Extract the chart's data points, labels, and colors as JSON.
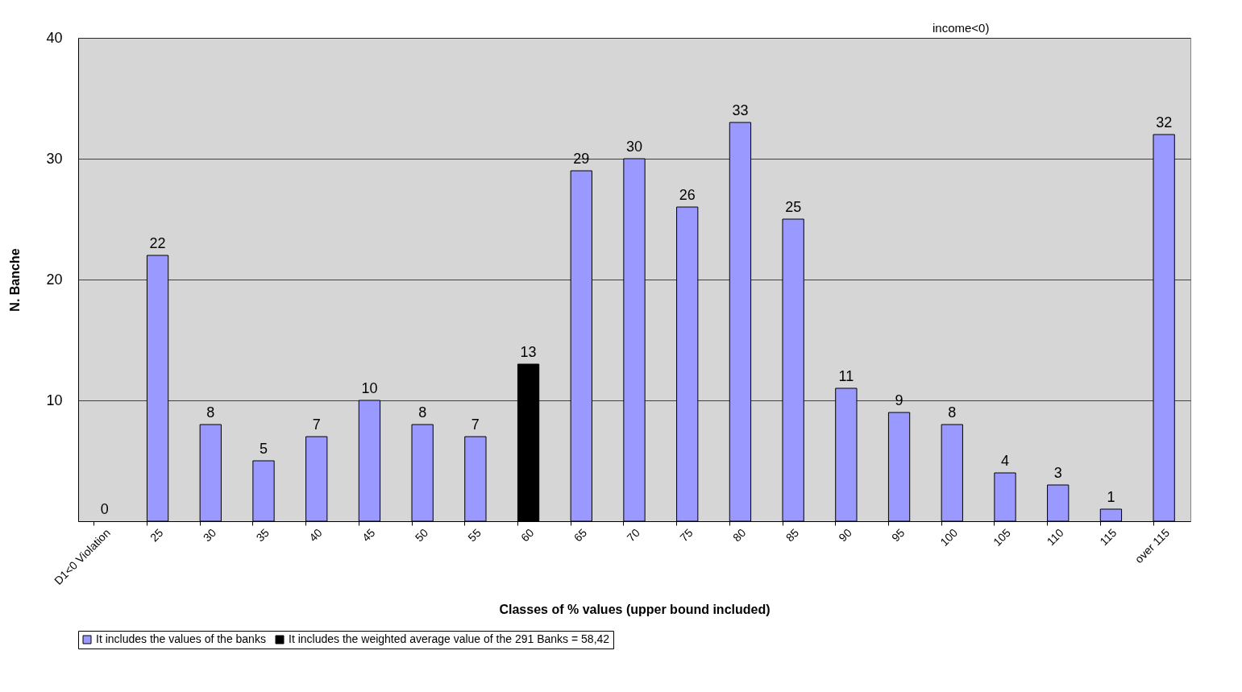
{
  "chart_data": {
    "type": "bar",
    "xlabel": "Classes of % values (upper bound included)",
    "ylabel": "N. Banche",
    "categories": [
      "D1<0 Violation",
      "25",
      "30",
      "35",
      "40",
      "45",
      "50",
      "55",
      "60",
      "65",
      "70",
      "75",
      "80",
      "85",
      "90",
      "95",
      "100",
      "105",
      "110",
      "115",
      "over 115"
    ],
    "series": [
      {
        "name": "It includes the values of the banks",
        "color": "#9999ff",
        "values": [
          0,
          22,
          8,
          5,
          7,
          10,
          8,
          7,
          null,
          29,
          30,
          26,
          33,
          25,
          11,
          9,
          8,
          4,
          3,
          1,
          32
        ]
      },
      {
        "name": "It includes the weighted average value of the 291 Banks = 58,42",
        "color": "#000000",
        "values": [
          null,
          null,
          null,
          null,
          null,
          null,
          null,
          null,
          13,
          null,
          null,
          null,
          null,
          null,
          null,
          null,
          null,
          null,
          null,
          null,
          null
        ]
      }
    ],
    "ylim": [
      0,
      40
    ],
    "yticks": [
      10,
      20,
      30,
      40
    ],
    "grid": "y",
    "legend": "bottom",
    "data_labels": true,
    "annotations": [
      "income<0)"
    ]
  }
}
